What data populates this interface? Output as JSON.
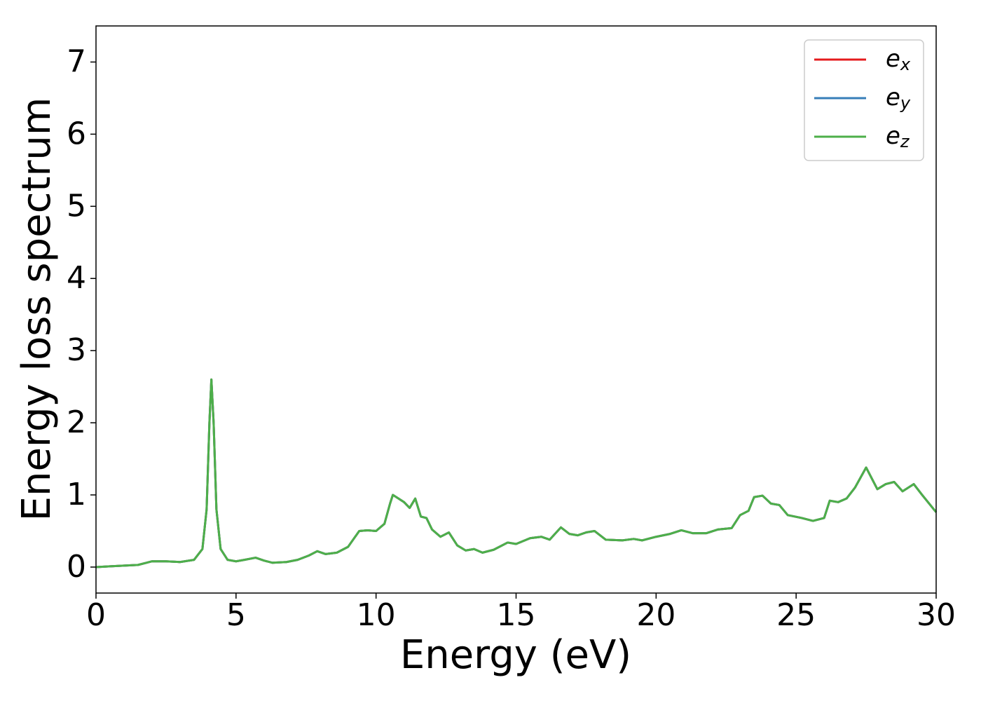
{
  "chart_data": {
    "type": "line",
    "xlabel": "Energy (eV)",
    "ylabel": "Energy loss spectrum",
    "xlim": [
      0,
      30
    ],
    "ylim": [
      -0.36,
      7.5
    ],
    "xticks": [
      0,
      5,
      10,
      15,
      20,
      25,
      30
    ],
    "yticks": [
      0,
      1,
      2,
      3,
      4,
      5,
      6,
      7
    ],
    "legend": "upper right",
    "x": [
      0,
      0.5,
      1.0,
      1.5,
      1.8,
      2.0,
      2.5,
      3.0,
      3.5,
      3.8,
      3.95,
      4.05,
      4.12,
      4.2,
      4.3,
      4.45,
      4.7,
      5.0,
      5.3,
      5.7,
      6.0,
      6.3,
      6.8,
      7.2,
      7.6,
      7.9,
      8.2,
      8.6,
      9.0,
      9.4,
      9.7,
      10.0,
      10.3,
      10.5,
      10.6,
      10.8,
      11.0,
      11.2,
      11.4,
      11.6,
      11.8,
      12.0,
      12.3,
      12.6,
      12.9,
      13.2,
      13.5,
      13.8,
      14.2,
      14.7,
      15.0,
      15.5,
      15.9,
      16.2,
      16.6,
      16.9,
      17.2,
      17.5,
      17.8,
      18.2,
      18.8,
      19.2,
      19.5,
      20.0,
      20.5,
      20.9,
      21.3,
      21.8,
      22.2,
      22.7,
      23.0,
      23.3,
      23.5,
      23.8,
      24.1,
      24.4,
      24.7,
      25.2,
      25.6,
      26.0,
      26.2,
      26.5,
      26.8,
      27.1,
      27.5,
      27.9,
      28.2,
      28.5,
      28.8,
      29.2,
      29.5,
      30.0
    ],
    "series": [
      {
        "name": "e_x",
        "color": "#e41a1c",
        "values": [
          0.0,
          0.01,
          0.02,
          0.03,
          0.06,
          0.08,
          0.08,
          0.07,
          0.1,
          0.25,
          0.8,
          2.0,
          2.6,
          2.0,
          0.8,
          0.25,
          0.1,
          0.08,
          0.1,
          0.13,
          0.09,
          0.06,
          0.07,
          0.1,
          0.16,
          0.22,
          0.18,
          0.2,
          0.28,
          0.5,
          0.51,
          0.5,
          0.6,
          0.88,
          1.0,
          0.95,
          0.9,
          0.82,
          0.95,
          0.7,
          0.68,
          0.52,
          0.42,
          0.48,
          0.3,
          0.23,
          0.25,
          0.2,
          0.24,
          0.34,
          0.32,
          0.4,
          0.42,
          0.38,
          0.55,
          0.46,
          0.44,
          0.48,
          0.5,
          0.38,
          0.37,
          0.39,
          0.37,
          0.42,
          0.46,
          0.51,
          0.47,
          0.47,
          0.52,
          0.54,
          0.72,
          0.78,
          0.97,
          0.99,
          0.88,
          0.86,
          0.72,
          0.68,
          0.64,
          0.68,
          0.92,
          0.9,
          0.95,
          1.1,
          1.38,
          1.08,
          1.15,
          1.18,
          1.05,
          1.15,
          1.0,
          0.76
        ]
      },
      {
        "name": "e_y",
        "color": "#377eb8",
        "values": [
          0.0,
          0.01,
          0.02,
          0.03,
          0.06,
          0.08,
          0.08,
          0.07,
          0.1,
          0.25,
          0.8,
          2.0,
          2.6,
          2.0,
          0.8,
          0.25,
          0.1,
          0.08,
          0.1,
          0.13,
          0.09,
          0.06,
          0.07,
          0.1,
          0.16,
          0.22,
          0.18,
          0.2,
          0.28,
          0.5,
          0.51,
          0.5,
          0.6,
          0.88,
          1.0,
          0.95,
          0.9,
          0.82,
          0.95,
          0.7,
          0.68,
          0.52,
          0.42,
          0.48,
          0.3,
          0.23,
          0.25,
          0.2,
          0.24,
          0.34,
          0.32,
          0.4,
          0.42,
          0.38,
          0.55,
          0.46,
          0.44,
          0.48,
          0.5,
          0.38,
          0.37,
          0.39,
          0.37,
          0.42,
          0.46,
          0.51,
          0.47,
          0.47,
          0.52,
          0.54,
          0.72,
          0.78,
          0.97,
          0.99,
          0.88,
          0.86,
          0.72,
          0.68,
          0.64,
          0.68,
          0.92,
          0.9,
          0.95,
          1.1,
          1.38,
          1.08,
          1.15,
          1.18,
          1.05,
          1.15,
          1.0,
          0.76
        ]
      },
      {
        "name": "e_z",
        "color": "#4daf4a",
        "values": [
          0.0,
          0.01,
          0.02,
          0.03,
          0.06,
          0.08,
          0.08,
          0.07,
          0.1,
          0.25,
          0.8,
          2.0,
          2.6,
          2.0,
          0.8,
          0.25,
          0.1,
          0.08,
          0.1,
          0.13,
          0.09,
          0.06,
          0.07,
          0.1,
          0.16,
          0.22,
          0.18,
          0.2,
          0.28,
          0.5,
          0.51,
          0.5,
          0.6,
          0.88,
          1.0,
          0.95,
          0.9,
          0.82,
          0.95,
          0.7,
          0.68,
          0.52,
          0.42,
          0.48,
          0.3,
          0.23,
          0.25,
          0.2,
          0.24,
          0.34,
          0.32,
          0.4,
          0.42,
          0.38,
          0.55,
          0.46,
          0.44,
          0.48,
          0.5,
          0.38,
          0.37,
          0.39,
          0.37,
          0.42,
          0.46,
          0.51,
          0.47,
          0.47,
          0.52,
          0.54,
          0.72,
          0.78,
          0.97,
          0.99,
          0.88,
          0.86,
          0.72,
          0.68,
          0.64,
          0.68,
          0.92,
          0.9,
          0.95,
          1.1,
          1.38,
          1.08,
          1.15,
          1.18,
          1.05,
          1.15,
          1.0,
          0.76
        ]
      }
    ]
  }
}
